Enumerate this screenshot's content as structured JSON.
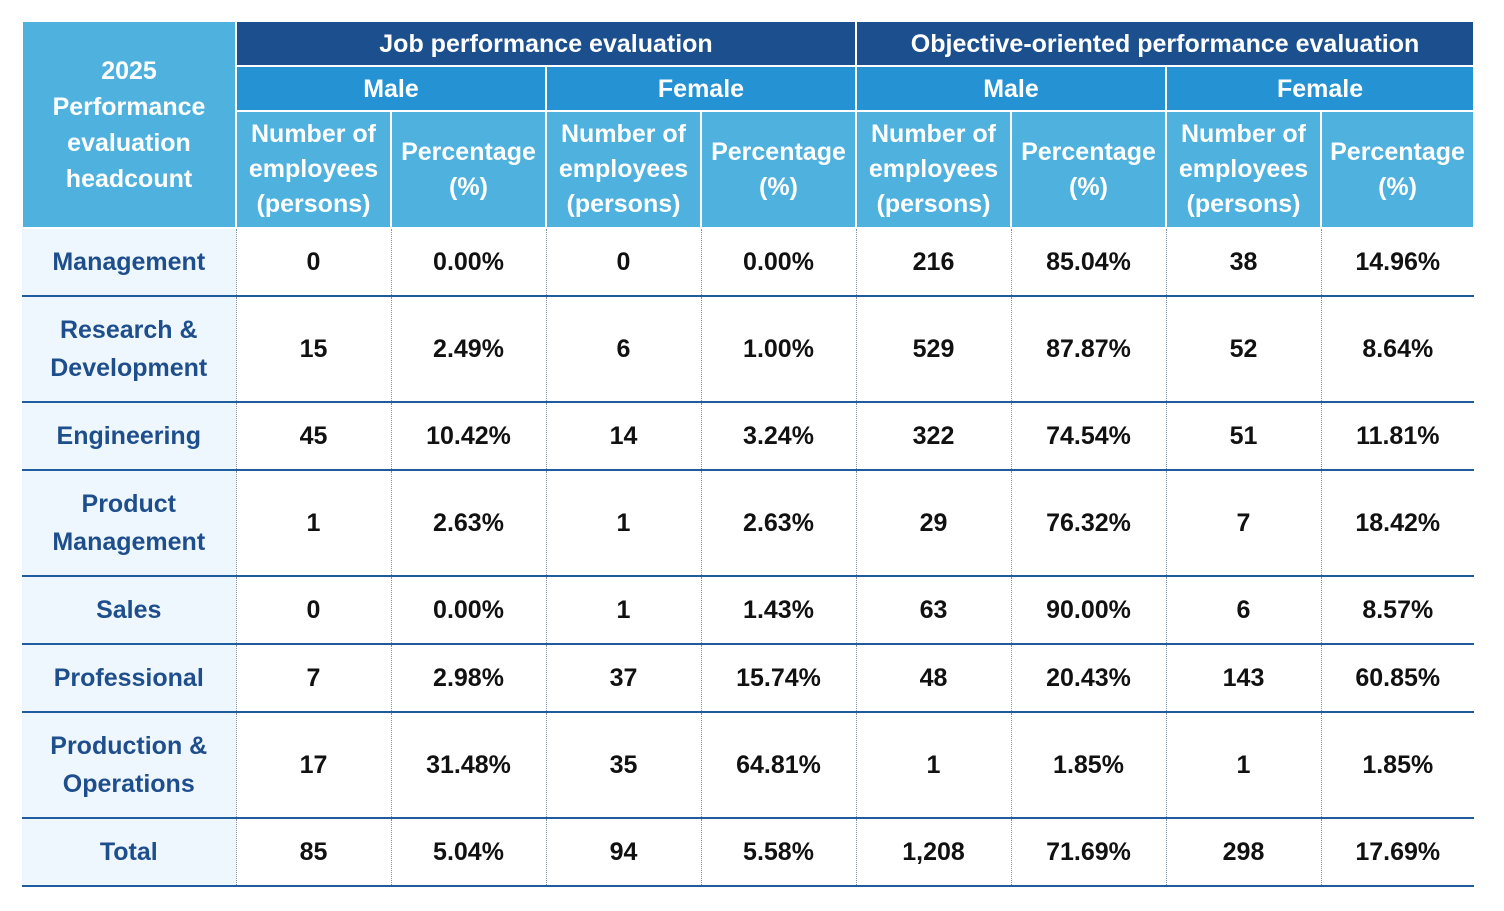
{
  "header": {
    "corner": "2025 Performance evaluation headcount",
    "groups": [
      "Job performance evaluation",
      "Objective-oriented performance evaluation"
    ],
    "genders": [
      "Male",
      "Female",
      "Male",
      "Female"
    ],
    "subheads": [
      "Number of employees (persons)",
      "Percentage (%)",
      "Number of employees (persons)",
      "Percentage (%)",
      "Number of employees (persons)",
      "Percentage (%)",
      "Number of employees (persons)",
      "Percentage (%)"
    ]
  },
  "table": {
    "rows": [
      [
        "Management",
        "0",
        "0.00%",
        "0",
        "0.00%",
        "216",
        "85.04%",
        "38",
        "14.96%"
      ],
      [
        "Research & Development",
        "15",
        "2.49%",
        "6",
        "1.00%",
        "529",
        "87.87%",
        "52",
        "8.64%"
      ],
      [
        "Engineering",
        "45",
        "10.42%",
        "14",
        "3.24%",
        "322",
        "74.54%",
        "51",
        "11.81%"
      ],
      [
        "Product Management",
        "1",
        "2.63%",
        "1",
        "2.63%",
        "29",
        "76.32%",
        "7",
        "18.42%"
      ],
      [
        "Sales",
        "0",
        "0.00%",
        "1",
        "1.43%",
        "63",
        "90.00%",
        "6",
        "8.57%"
      ],
      [
        "Professional",
        "7",
        "2.98%",
        "37",
        "15.74%",
        "48",
        "20.43%",
        "143",
        "60.85%"
      ],
      [
        "Production & Operations",
        "17",
        "31.48%",
        "35",
        "64.81%",
        "1",
        "1.85%",
        "1",
        "1.85%"
      ],
      [
        "Total",
        "85",
        "5.04%",
        "94",
        "5.58%",
        "1,208",
        "71.69%",
        "298",
        "17.69%"
      ]
    ]
  }
}
